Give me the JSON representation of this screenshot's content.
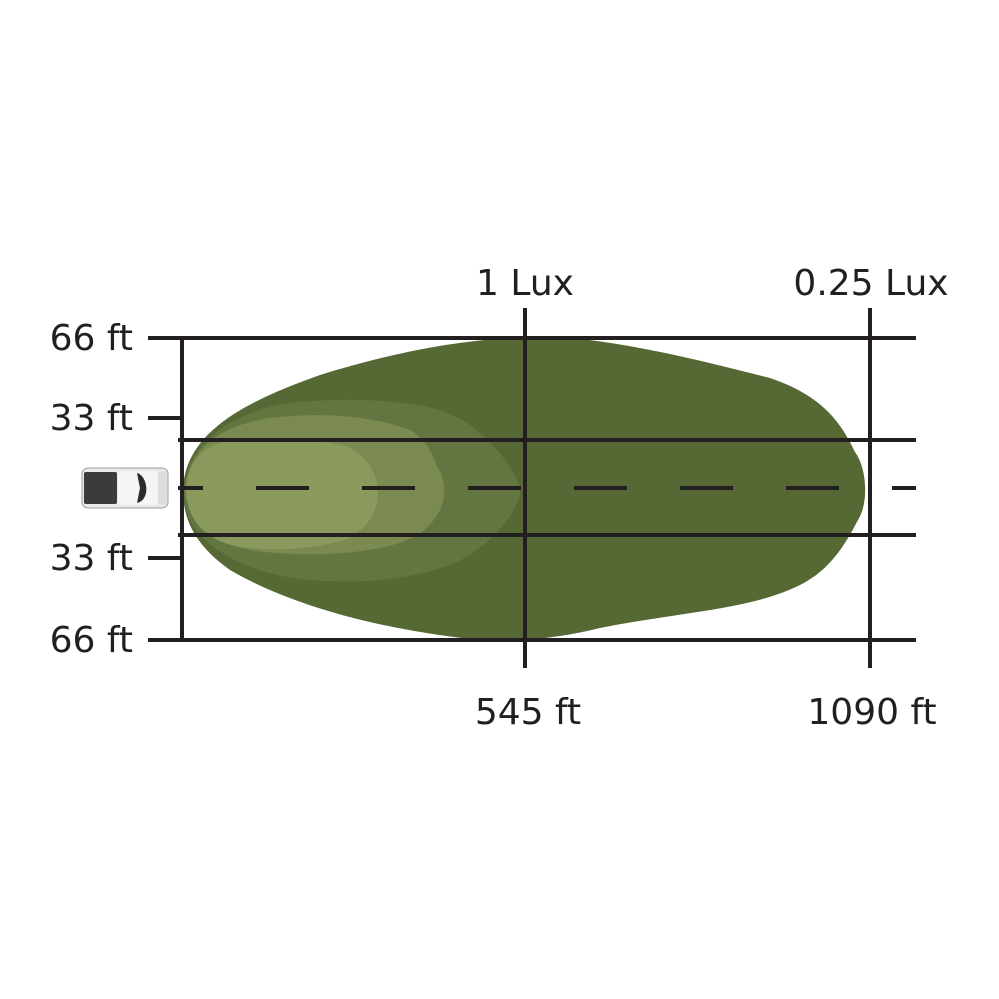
{
  "diagram": {
    "lateral_labels": [
      "66 ft",
      "33 ft",
      "33 ft",
      "66 ft"
    ],
    "lux_labels": [
      "1 Lux",
      "0.25 Lux"
    ],
    "distance_labels": [
      "545 ft",
      "1090 ft"
    ],
    "vehicle_icon": "pickup-truck-top-view",
    "colors": {
      "outer_beam": "#566935",
      "mid_beam": "#637641",
      "inner_beam": "#7a8a50",
      "core_beam": "#8a9a5c",
      "grid_lines": "#231f20"
    }
  }
}
